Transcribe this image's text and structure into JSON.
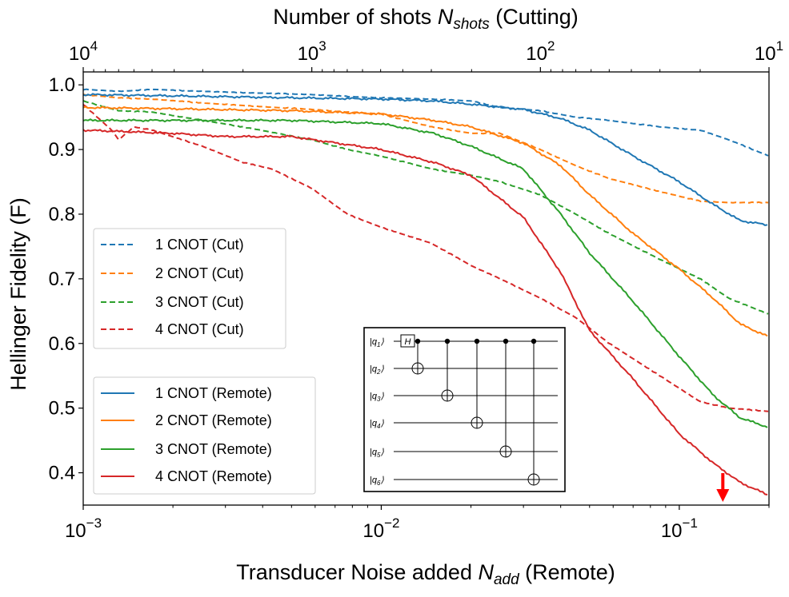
{
  "chart_data": {
    "type": "line",
    "top_axis": {
      "title_prefix": "Number of shots ",
      "title_var": "N",
      "title_sub": "shots",
      "title_suffix": " (Cutting)",
      "scale": "log",
      "reversed": true,
      "range": [
        10000,
        10
      ],
      "ticks": [
        {
          "base": "10",
          "exp": "4",
          "value": 10000
        },
        {
          "base": "10",
          "exp": "3",
          "value": 1000
        },
        {
          "base": "10",
          "exp": "2",
          "value": 100
        },
        {
          "base": "10",
          "exp": "1",
          "value": 10
        }
      ]
    },
    "bottom_axis": {
      "title_prefix": "Transducer Noise added ",
      "title_var": "N",
      "title_sub": "add",
      "title_suffix": " (Remote)",
      "scale": "log",
      "range": [
        0.001,
        0.2
      ],
      "ticks": [
        {
          "base": "10",
          "exp": "−3",
          "value": 0.001
        },
        {
          "base": "10",
          "exp": "−2",
          "value": 0.01
        },
        {
          "base": "10",
          "exp": "−1",
          "value": 0.1
        }
      ]
    },
    "y_axis": {
      "title": "Hellinger Fidelity (F)",
      "range": [
        0.35,
        1.02
      ],
      "ticks": [
        "1.0",
        "0.9",
        "0.8",
        "0.7",
        "0.6",
        "0.5",
        "0.4"
      ]
    },
    "series_cut": [
      {
        "name": "1 CNOT (Cut)",
        "color": "#1f77b4",
        "x": [
          10000,
          7000,
          5000,
          3000,
          2000,
          1000,
          700,
          500,
          300,
          200,
          150,
          100,
          70,
          50,
          30,
          20,
          15,
          10
        ],
        "y": [
          0.993,
          0.99,
          0.993,
          0.99,
          0.988,
          0.985,
          0.982,
          0.98,
          0.978,
          0.975,
          0.965,
          0.96,
          0.95,
          0.945,
          0.935,
          0.93,
          0.915,
          0.89
        ]
      },
      {
        "name": "2 CNOT (Cut)",
        "color": "#ff7f0e",
        "x": [
          10000,
          7000,
          5000,
          3000,
          2000,
          1000,
          700,
          500,
          300,
          200,
          150,
          100,
          70,
          50,
          30,
          20,
          15,
          10
        ],
        "y": [
          0.985,
          0.98,
          0.978,
          0.972,
          0.968,
          0.962,
          0.958,
          0.955,
          0.935,
          0.925,
          0.925,
          0.9,
          0.875,
          0.855,
          0.835,
          0.82,
          0.818,
          0.818
        ]
      },
      {
        "name": "3 CNOT (Cut)",
        "color": "#2ca02c",
        "x": [
          10000,
          7000,
          5000,
          3000,
          2000,
          1000,
          700,
          500,
          300,
          200,
          150,
          100,
          70,
          50,
          30,
          20,
          15,
          10
        ],
        "y": [
          0.975,
          0.96,
          0.958,
          0.945,
          0.935,
          0.915,
          0.9,
          0.89,
          0.87,
          0.86,
          0.85,
          0.83,
          0.8,
          0.77,
          0.73,
          0.7,
          0.67,
          0.645
        ]
      },
      {
        "name": "4 CNOT (Cut)",
        "color": "#d62728",
        "x": [
          10000,
          9000,
          7500,
          7000,
          6000,
          5000,
          3000,
          2000,
          1500,
          1000,
          700,
          500,
          300,
          200,
          150,
          100,
          70,
          50,
          30,
          20,
          15,
          10
        ],
        "y": [
          0.97,
          0.955,
          0.93,
          0.915,
          0.935,
          0.93,
          0.905,
          0.88,
          0.87,
          0.84,
          0.8,
          0.78,
          0.755,
          0.72,
          0.7,
          0.67,
          0.64,
          0.6,
          0.55,
          0.51,
          0.5,
          0.495
        ]
      }
    ],
    "series_remote": [
      {
        "name": "1 CNOT (Remote)",
        "color": "#1f77b4",
        "x": [
          0.001,
          0.002,
          0.005,
          0.01,
          0.015,
          0.02,
          0.03,
          0.04,
          0.05,
          0.07,
          0.1,
          0.13,
          0.16,
          0.2
        ],
        "y": [
          0.985,
          0.983,
          0.98,
          0.978,
          0.975,
          0.97,
          0.962,
          0.948,
          0.93,
          0.89,
          0.85,
          0.815,
          0.79,
          0.783
        ]
      },
      {
        "name": "2 CNOT (Remote)",
        "color": "#ff7f0e",
        "x": [
          0.001,
          0.002,
          0.005,
          0.01,
          0.015,
          0.02,
          0.03,
          0.04,
          0.05,
          0.07,
          0.1,
          0.13,
          0.16,
          0.2
        ],
        "y": [
          0.965,
          0.963,
          0.96,
          0.955,
          0.945,
          0.935,
          0.91,
          0.875,
          0.83,
          0.77,
          0.715,
          0.67,
          0.63,
          0.61
        ]
      },
      {
        "name": "3 CNOT (Remote)",
        "color": "#2ca02c",
        "x": [
          0.001,
          0.002,
          0.005,
          0.01,
          0.015,
          0.02,
          0.03,
          0.04,
          0.05,
          0.07,
          0.1,
          0.13,
          0.16,
          0.2
        ],
        "y": [
          0.945,
          0.945,
          0.945,
          0.94,
          0.925,
          0.905,
          0.87,
          0.8,
          0.74,
          0.665,
          0.58,
          0.52,
          0.485,
          0.47
        ]
      },
      {
        "name": "4 CNOT (Remote)",
        "color": "#d62728",
        "x": [
          0.001,
          0.002,
          0.003,
          0.005,
          0.01,
          0.015,
          0.02,
          0.03,
          0.04,
          0.05,
          0.07,
          0.1,
          0.13,
          0.16,
          0.2
        ],
        "y": [
          0.93,
          0.925,
          0.92,
          0.92,
          0.9,
          0.88,
          0.86,
          0.795,
          0.71,
          0.62,
          0.545,
          0.46,
          0.415,
          0.385,
          0.365
        ]
      }
    ],
    "legend_cut_position": "middle-left",
    "legend_remote_position": "lower-left",
    "marker": {
      "type": "arrow",
      "color": "#ff0000",
      "x": 0.14,
      "direction": "down"
    },
    "inset_circuit": {
      "qubits": [
        {
          "ket_l": "|",
          "name": "q",
          "sub": "1",
          "ket_r": "⟩"
        },
        {
          "ket_l": "|",
          "name": "q",
          "sub": "2",
          "ket_r": "⟩"
        },
        {
          "ket_l": "|",
          "name": "q",
          "sub": "3",
          "ket_r": "⟩"
        },
        {
          "ket_l": "|",
          "name": "q",
          "sub": "4",
          "ket_r": "⟩"
        },
        {
          "ket_l": "|",
          "name": "q",
          "sub": "5",
          "ket_r": "⟩"
        },
        {
          "ket_l": "|",
          "name": "q",
          "sub": "6",
          "ket_r": "⟩"
        }
      ],
      "gate_label": "H",
      "cnot_targets": [
        2,
        3,
        4,
        5,
        6
      ],
      "control_qubit": 1
    }
  }
}
